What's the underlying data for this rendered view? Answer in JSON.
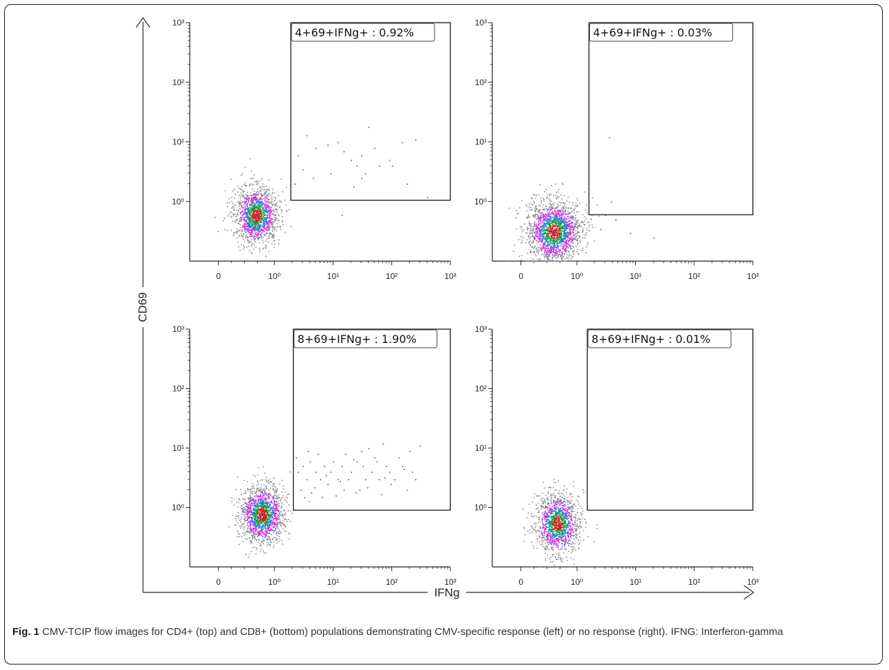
{
  "figure": {
    "axis_labels": {
      "x": "IFNg",
      "y": "CD69"
    },
    "caption_label": "Fig. 1",
    "caption_text": " CMV-TCIP flow images for CD4+ (top) and CD8+ (bottom) populations demonstrating CMV-specific response (left) or no response (right). IFNG: Interferon-gamma"
  },
  "chart_data": [
    {
      "type": "scatter",
      "gate_label": "4+69+IFNg+ : 0.92%",
      "x_ticks": [
        "0",
        "10⁰",
        "10¹",
        "10²",
        "10³"
      ],
      "y_ticks": [
        "10³",
        "10²",
        "10¹",
        "10⁰"
      ],
      "gate": {
        "x_min": 1.9,
        "y_min": 1.05
      },
      "populations": [
        {
          "x": 0.62,
          "y": 0.6,
          "spread_x": 0.22,
          "spread_y": 0.3,
          "count": 1400
        }
      ],
      "outliers": [
        [
          3.5,
          13
        ],
        [
          2.5,
          6
        ],
        [
          5,
          8
        ],
        [
          8,
          9
        ],
        [
          12,
          10
        ],
        [
          15,
          7
        ],
        [
          20,
          5
        ],
        [
          25,
          4
        ],
        [
          30,
          6
        ],
        [
          40,
          18
        ],
        [
          35,
          3
        ],
        [
          60,
          4
        ],
        [
          90,
          5
        ],
        [
          100,
          4
        ],
        [
          150,
          10
        ],
        [
          250,
          11
        ],
        [
          180,
          2
        ],
        [
          400,
          1.2
        ],
        [
          2.2,
          2
        ],
        [
          3,
          3.5
        ],
        [
          4.5,
          2.5
        ],
        [
          9,
          3
        ],
        [
          14,
          0.6
        ],
        [
          22,
          1.8
        ],
        [
          30,
          2.5
        ],
        [
          50,
          8
        ]
      ]
    },
    {
      "type": "scatter",
      "gate_label": "4+69+IFNg+ : 0.03%",
      "x_ticks": [
        "0",
        "10⁰",
        "10¹",
        "10²",
        "10³"
      ],
      "y_ticks": [
        "10³",
        "10²",
        "10¹",
        "10⁰"
      ],
      "gate": {
        "x_min": 1.6,
        "y_min": 0.6
      },
      "populations": [
        {
          "x": 0.55,
          "y": 0.32,
          "spread_x": 0.3,
          "spread_y": 0.35,
          "count": 1800
        }
      ],
      "outliers": [
        [
          3.5,
          12
        ],
        [
          3.8,
          1
        ],
        [
          4.5,
          0.5
        ],
        [
          8,
          0.3
        ],
        [
          20,
          0.25
        ],
        [
          2.5,
          0.35
        ],
        [
          3,
          0.6
        ]
      ]
    },
    {
      "type": "scatter",
      "gate_label": "8+69+IFNg+ : 1.90%",
      "x_ticks": [
        "0",
        "10⁰",
        "10¹",
        "10²",
        "10³"
      ],
      "y_ticks": [
        "10³",
        "10²",
        "10¹",
        "10⁰"
      ],
      "gate": {
        "x_min": 2.1,
        "y_min": 0.9
      },
      "populations": [
        {
          "x": 0.72,
          "y": 0.78,
          "spread_x": 0.22,
          "spread_y": 0.3,
          "count": 1500
        }
      ],
      "outliers": [
        [
          2.5,
          4
        ],
        [
          3,
          5
        ],
        [
          3.5,
          3
        ],
        [
          4,
          6
        ],
        [
          5,
          4
        ],
        [
          5.5,
          8
        ],
        [
          6,
          3
        ],
        [
          7,
          5
        ],
        [
          8,
          2.5
        ],
        [
          9,
          4
        ],
        [
          10,
          6
        ],
        [
          12,
          3
        ],
        [
          14,
          5
        ],
        [
          16,
          8
        ],
        [
          18,
          3
        ],
        [
          20,
          4
        ],
        [
          25,
          6
        ],
        [
          28,
          2
        ],
        [
          32,
          5
        ],
        [
          35,
          3
        ],
        [
          40,
          10
        ],
        [
          45,
          4
        ],
        [
          55,
          6
        ],
        [
          60,
          3
        ],
        [
          70,
          12
        ],
        [
          80,
          5
        ],
        [
          90,
          4
        ],
        [
          110,
          3
        ],
        [
          130,
          7
        ],
        [
          150,
          5
        ],
        [
          180,
          2
        ],
        [
          200,
          9
        ],
        [
          220,
          4
        ],
        [
          250,
          3
        ],
        [
          300,
          11
        ],
        [
          2.8,
          2
        ],
        [
          3.2,
          1.5
        ],
        [
          4.2,
          1.8
        ],
        [
          6.5,
          1.5
        ],
        [
          11,
          1.6
        ],
        [
          15,
          2
        ],
        [
          24,
          1.8
        ],
        [
          38,
          2.2
        ],
        [
          65,
          1.7
        ],
        [
          95,
          2.5
        ],
        [
          2.3,
          7
        ],
        [
          3.7,
          9
        ],
        [
          4.8,
          2.2
        ],
        [
          7.5,
          3.5
        ],
        [
          13,
          2.8
        ],
        [
          22,
          6.5
        ],
        [
          30,
          9
        ],
        [
          50,
          7
        ],
        [
          75,
          3.2
        ],
        [
          160,
          4.5
        ]
      ]
    },
    {
      "type": "scatter",
      "gate_label": "8+69+IFNg+ : 0.01%",
      "x_ticks": [
        "0",
        "10⁰",
        "10¹",
        "10²",
        "10³"
      ],
      "y_ticks": [
        "10³",
        "10²",
        "10¹",
        "10⁰"
      ],
      "gate": {
        "x_min": 1.5,
        "y_min": 0.9
      },
      "populations": [
        {
          "x": 0.6,
          "y": 0.55,
          "spread_x": 0.22,
          "spread_y": 0.33,
          "count": 1300
        }
      ],
      "outliers": [
        [
          0.5,
          2.2
        ],
        [
          0.7,
          2
        ],
        [
          0.35,
          1.6
        ]
      ]
    }
  ]
}
